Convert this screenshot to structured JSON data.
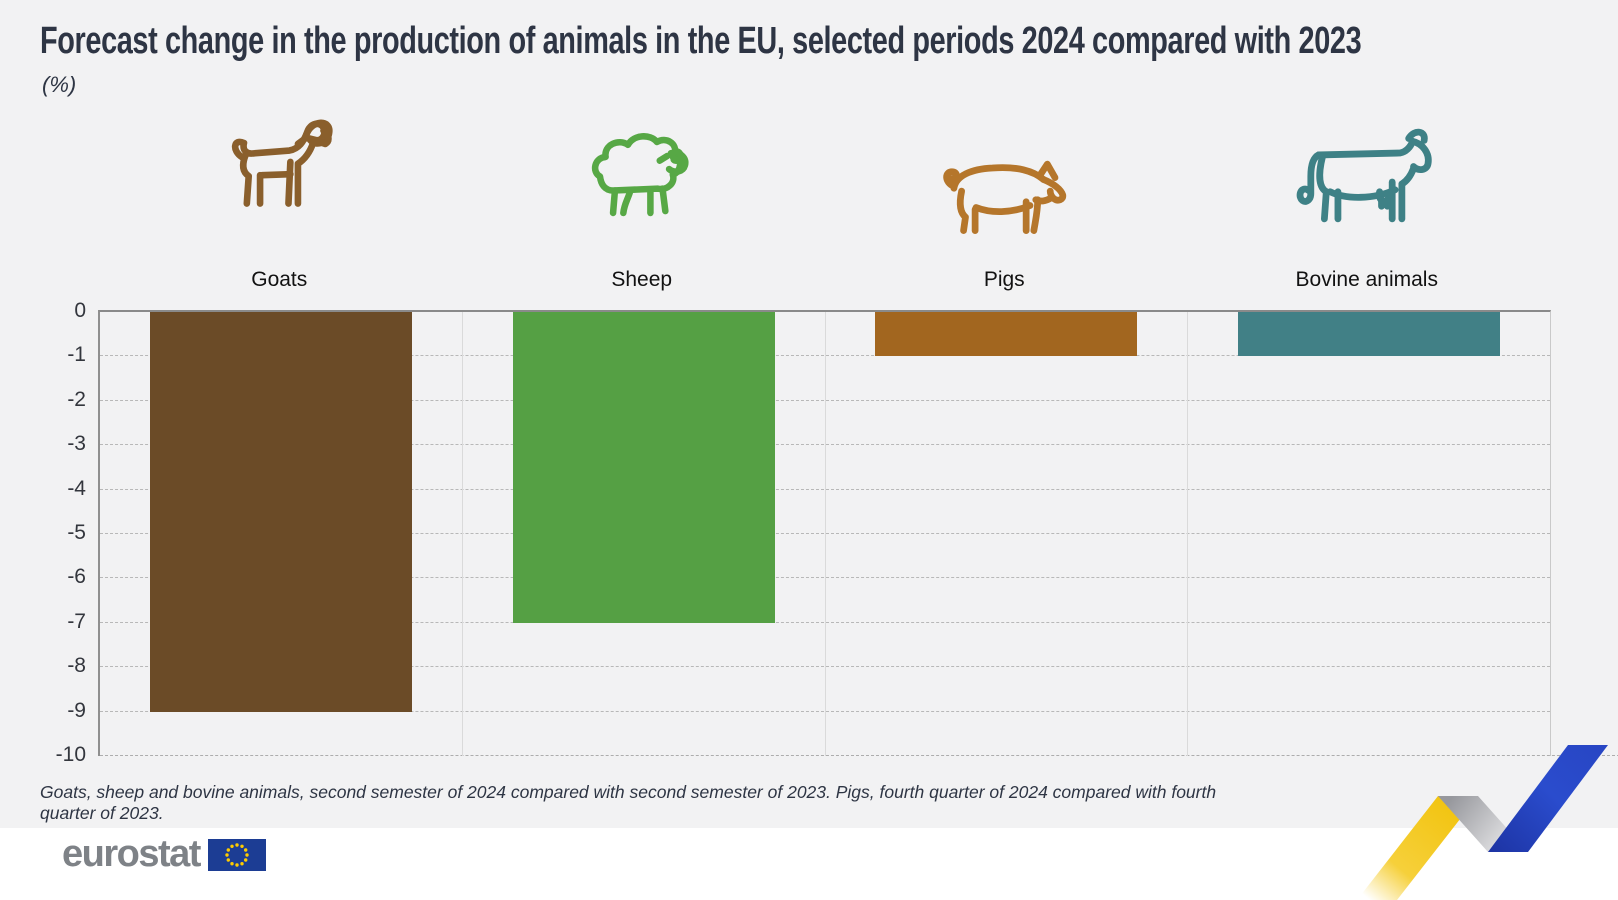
{
  "title": "Forecast change in the production of animals in the EU, selected periods 2024 compared with 2023",
  "subtitle": "(%)",
  "footnote": "Goats, sheep and bovine animals, second semester of 2024 compared with second semester of 2023. Pigs, fourth quarter of 2024 compared with fourth quarter of 2023.",
  "logo": {
    "text": "eurostat"
  },
  "colors": {
    "background": "#f2f2f3",
    "footer_background": "#ffffff",
    "title_color": "#2e3544",
    "logo_gray": "#7e8287",
    "eu_flag_blue": "#1c3d94",
    "eu_star_yellow": "#ffcc00",
    "ribbon_yellow": "#f2c411",
    "ribbon_gray": "#a9aaae",
    "ribbon_blue": "#2b49c6"
  },
  "chart_data": {
    "type": "bar",
    "title": "Forecast change in the production of animals in the EU, selected periods 2024 compared with 2023",
    "unit_label": "(%)",
    "categories": [
      "Goats",
      "Sheep",
      "Pigs",
      "Bovine animals"
    ],
    "values": [
      -9,
      -7,
      -1,
      -1
    ],
    "bar_colors": [
      "#6b4b27",
      "#55a044",
      "#a2661f",
      "#418086"
    ],
    "icons": [
      "goat-icon",
      "sheep-icon",
      "pig-icon",
      "cow-icon"
    ],
    "icon_colors": [
      "#8a5f2c",
      "#57a845",
      "#b5762b",
      "#3e8186"
    ],
    "xlabel": "",
    "ylabel": "(%)",
    "ylim": [
      -10,
      0
    ],
    "yticks": [
      "0",
      "-1",
      "-2",
      "-3",
      "-4",
      "-5",
      "-6",
      "-7",
      "-8",
      "-9",
      "-10"
    ],
    "grid": "horizontal-dashed",
    "legend": "none"
  }
}
